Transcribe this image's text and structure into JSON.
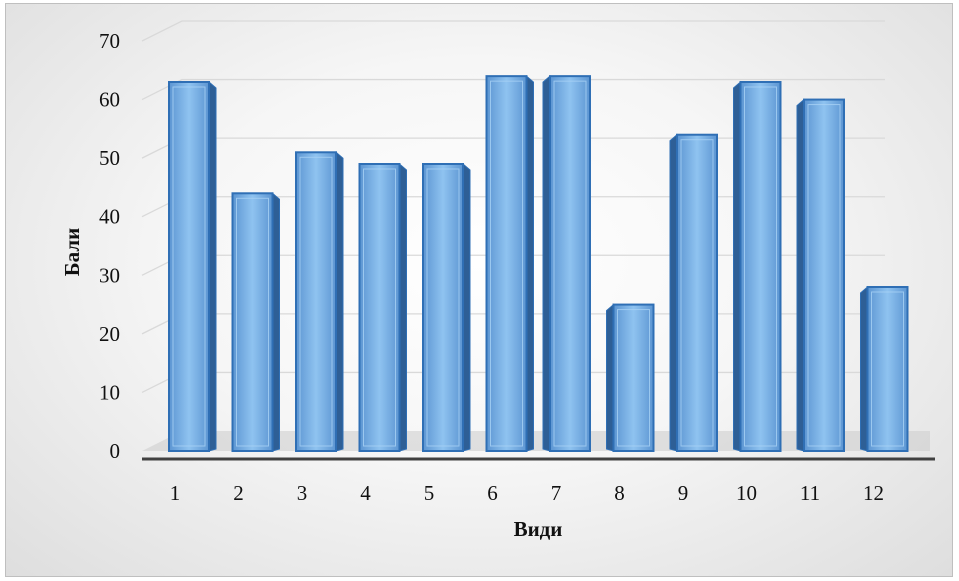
{
  "chart_data": {
    "type": "bar",
    "categories": [
      "1",
      "2",
      "3",
      "4",
      "5",
      "6",
      "7",
      "8",
      "9",
      "10",
      "11",
      "12"
    ],
    "values": [
      63,
      44,
      51,
      49,
      49,
      64,
      64,
      25,
      54,
      63,
      60,
      28
    ],
    "xlabel": "Види",
    "ylabel": "Бали",
    "ylim": [
      0,
      70
    ],
    "yticks": [
      "0",
      "10",
      "20",
      "30",
      "40",
      "50",
      "60",
      "70"
    ],
    "grid": true,
    "legend": "none",
    "colors": {
      "bar_front": "#6fa8dc",
      "bar_side": "#2e5f96",
      "bar_edge": "#2f6fb5",
      "grid": "#d9d9d9",
      "floor": "#cfcfcf",
      "axis": "#404040"
    }
  }
}
